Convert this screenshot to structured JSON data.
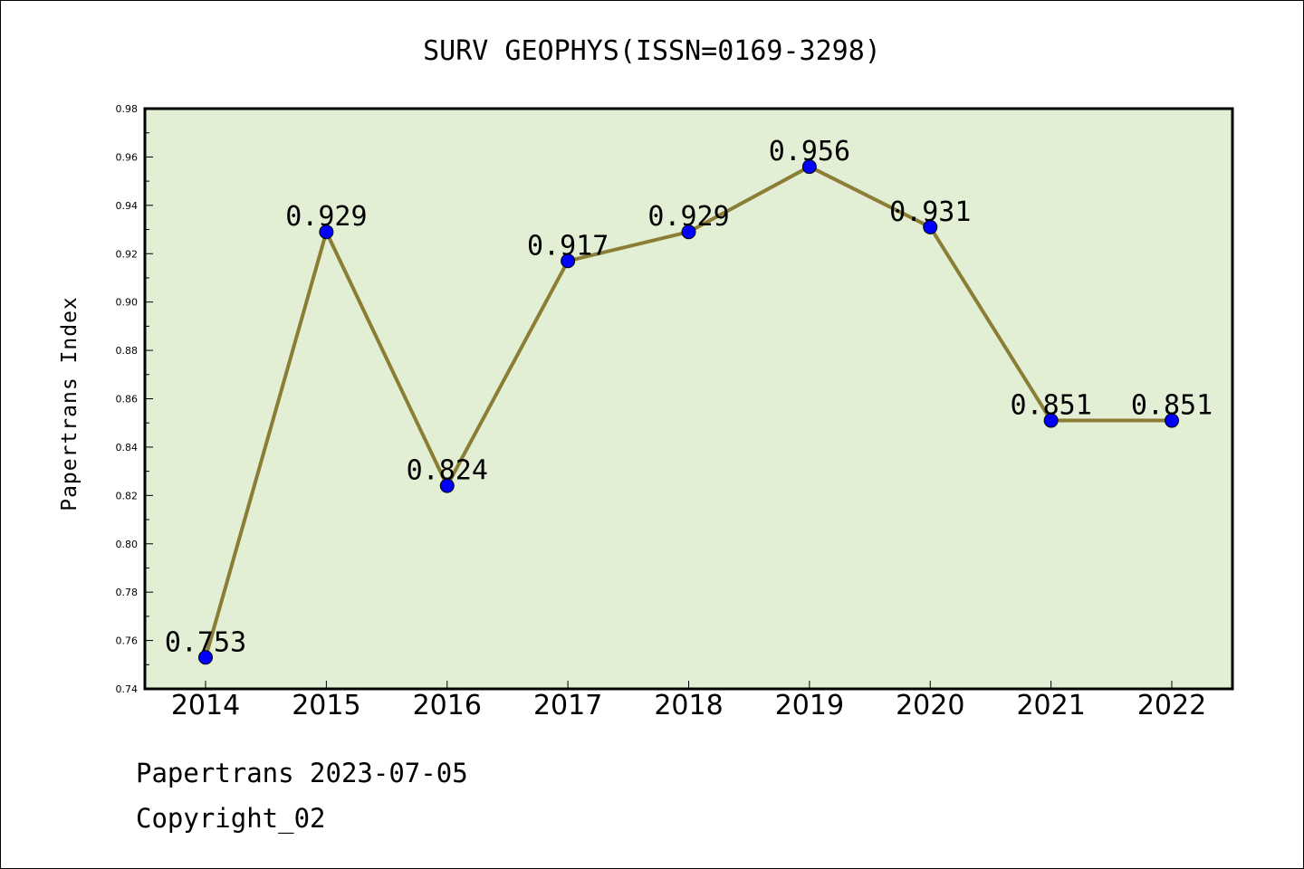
{
  "chart_data": {
    "type": "line",
    "title": "SURV GEOPHYS(ISSN=0169-3298)",
    "xlabel": "",
    "ylabel": "Papertrans Index",
    "x": [
      "2014",
      "2015",
      "2016",
      "2017",
      "2018",
      "2019",
      "2020",
      "2021",
      "2022"
    ],
    "series": [
      {
        "values": [
          0.753,
          0.929,
          0.824,
          0.917,
          0.929,
          0.956,
          0.931,
          0.851,
          0.851
        ]
      }
    ],
    "data_labels": [
      "0.753",
      "0.929",
      "0.824",
      "0.917",
      "0.929",
      "0.956",
      "0.931",
      "0.851",
      "0.851"
    ],
    "ylim": [
      0.74,
      0.98
    ],
    "yticks": [
      "0.74",
      "0.76",
      "0.78",
      "0.80",
      "0.82",
      "0.84",
      "0.86",
      "0.88",
      "0.90",
      "0.92",
      "0.94",
      "0.96",
      "0.98"
    ],
    "grid": false,
    "legend": "none",
    "colors": {
      "plot_background": "#e2efd4",
      "line": "#8b7d35",
      "marker": "#0000ff"
    }
  },
  "footer": {
    "line1": "Papertrans 2023-07-05",
    "line2": "Copyright_02"
  }
}
